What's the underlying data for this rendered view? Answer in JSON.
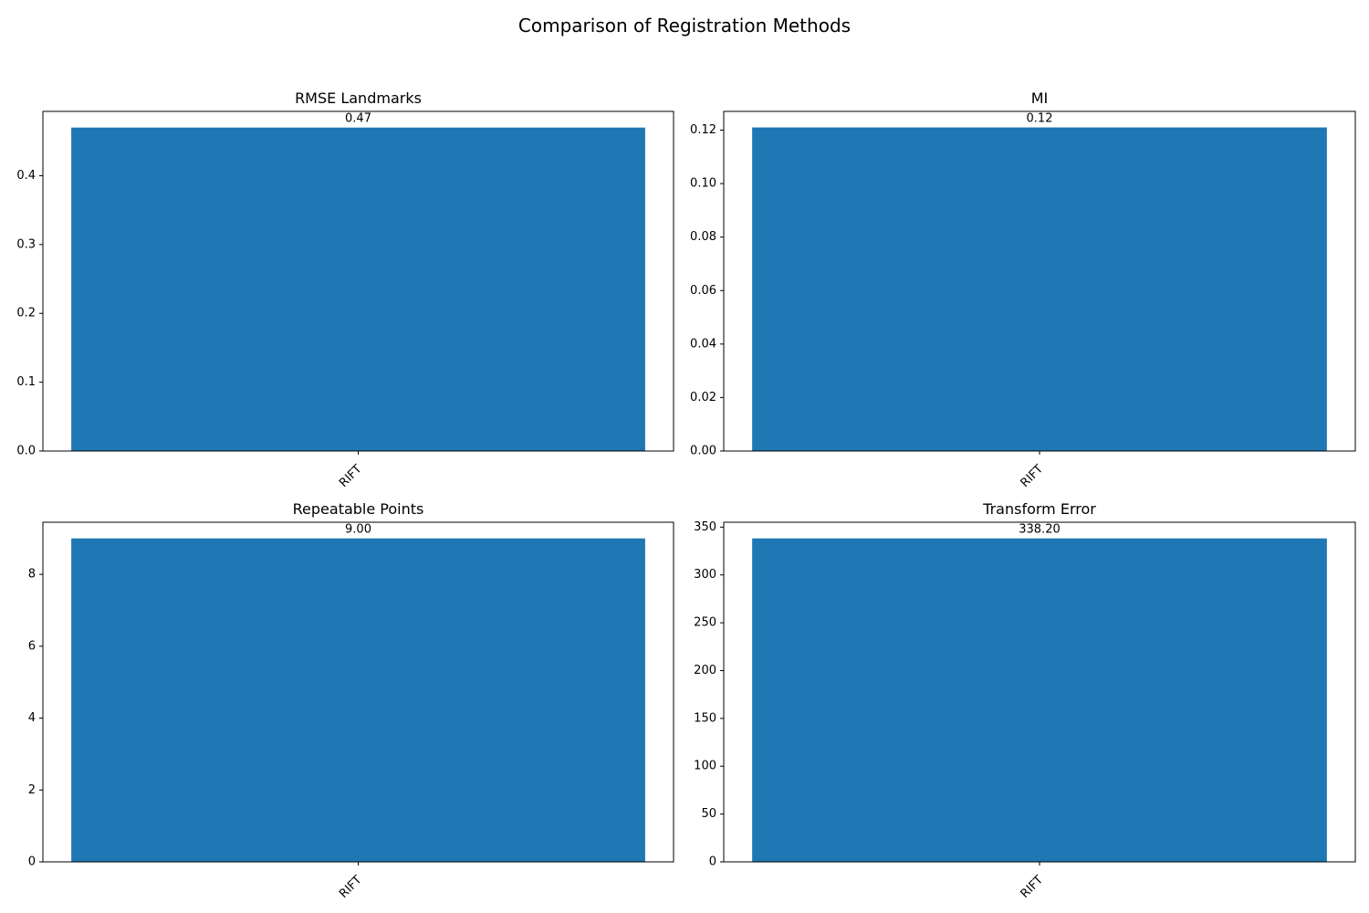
{
  "figure": {
    "title": "Comparison of Registration Methods"
  },
  "colors": {
    "bar": "#1f77b4"
  },
  "chart_data": [
    {
      "type": "bar",
      "title": "RMSE Landmarks",
      "categories": [
        "RIFT"
      ],
      "values": [
        0.47
      ],
      "value_labels": [
        "0.47"
      ],
      "ylim": [
        0,
        0.4935
      ],
      "yticks": [
        0.0,
        0.1,
        0.2,
        0.3,
        0.4
      ],
      "ytick_labels": [
        "0.0",
        "0.1",
        "0.2",
        "0.3",
        "0.4"
      ],
      "xlabel": "",
      "ylabel": "",
      "grid": false,
      "legend": null
    },
    {
      "type": "bar",
      "title": "MI",
      "categories": [
        "RIFT"
      ],
      "values": [
        0.121
      ],
      "value_labels": [
        "0.12"
      ],
      "ylim": [
        0,
        0.127
      ],
      "yticks": [
        0.0,
        0.02,
        0.04,
        0.06,
        0.08,
        0.1,
        0.12
      ],
      "ytick_labels": [
        "0.00",
        "0.02",
        "0.04",
        "0.06",
        "0.08",
        "0.10",
        "0.12"
      ],
      "xlabel": "",
      "ylabel": "",
      "grid": false,
      "legend": null
    },
    {
      "type": "bar",
      "title": "Repeatable Points",
      "categories": [
        "RIFT"
      ],
      "values": [
        9.0
      ],
      "value_labels": [
        "9.00"
      ],
      "ylim": [
        0,
        9.45
      ],
      "yticks": [
        0,
        2,
        4,
        6,
        8
      ],
      "ytick_labels": [
        "0",
        "2",
        "4",
        "6",
        "8"
      ],
      "xlabel": "",
      "ylabel": "",
      "grid": false,
      "legend": null
    },
    {
      "type": "bar",
      "title": "Transform Error",
      "categories": [
        "RIFT"
      ],
      "values": [
        338.2
      ],
      "value_labels": [
        "338.20"
      ],
      "ylim": [
        0,
        355.11
      ],
      "yticks": [
        0,
        50,
        100,
        150,
        200,
        250,
        300,
        350
      ],
      "ytick_labels": [
        "0",
        "50",
        "100",
        "150",
        "200",
        "250",
        "300",
        "350"
      ],
      "xlabel": "",
      "ylabel": "",
      "grid": false,
      "legend": null
    }
  ]
}
